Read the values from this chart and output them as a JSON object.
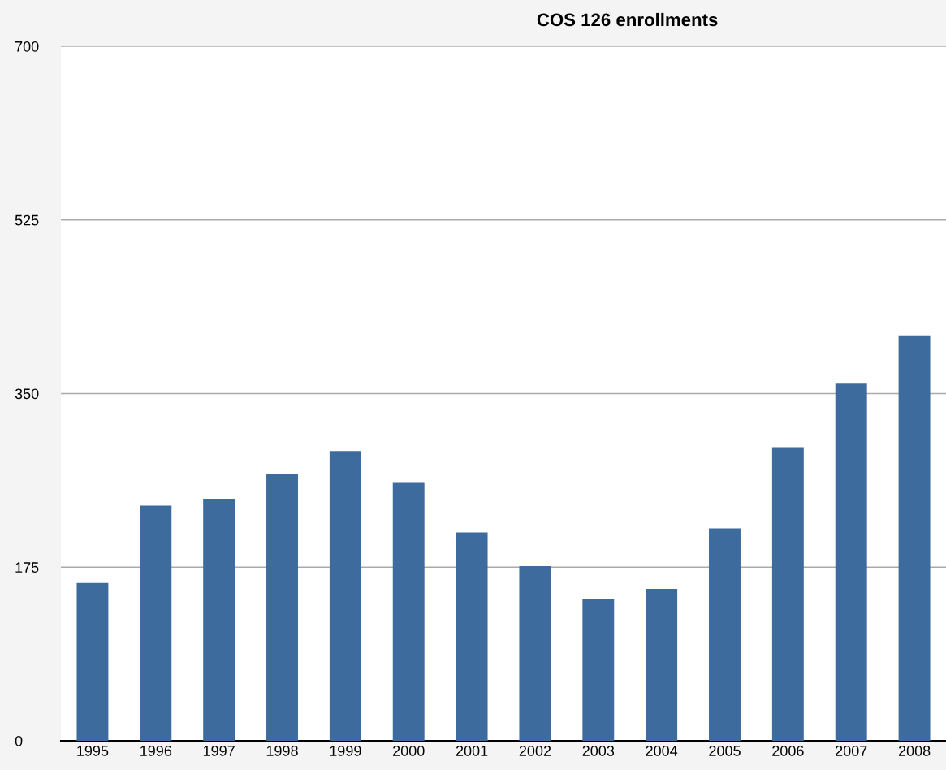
{
  "chart_data": {
    "type": "bar",
    "title": "COS 126 enrollments",
    "categories": [
      "1995",
      "1996",
      "1997",
      "1998",
      "1999",
      "2000",
      "2001",
      "2002",
      "2003",
      "2004",
      "2005",
      "2006",
      "2007",
      "2008"
    ],
    "values": [
      159,
      237,
      244,
      269,
      292,
      260,
      210,
      176,
      143,
      153,
      214,
      296,
      360,
      408
    ],
    "color": "#3d6b9e",
    "ylim": [
      0,
      700
    ],
    "yticks": [
      0,
      175,
      350,
      525,
      700
    ],
    "grid": "y"
  }
}
